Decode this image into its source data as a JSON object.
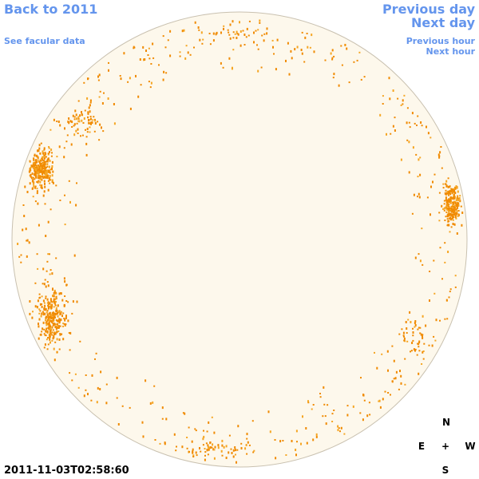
{
  "header": {
    "back_link": "Back to 2011",
    "facular_link": "See facular data",
    "previous_day": "Previous day",
    "next_day": "Next day",
    "previous_hour": "Previous hour",
    "next_hour": "Next hour"
  },
  "compass": {
    "north": "N",
    "east": "E",
    "center": "+",
    "west": "W",
    "south": "S"
  },
  "timestamp": "2011-11-03T02:58:60"
}
